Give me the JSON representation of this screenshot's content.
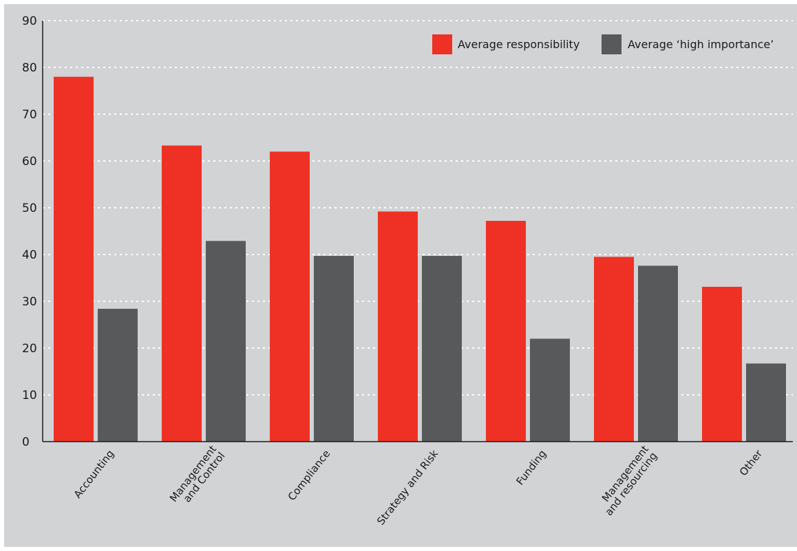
{
  "chart_data": {
    "type": "bar",
    "categories": [
      [
        "Accounting"
      ],
      [
        "Management",
        "and Control"
      ],
      [
        "Compliance"
      ],
      [
        "Strategy and Risk"
      ],
      [
        "Funding"
      ],
      [
        "Management",
        "and resourcing"
      ],
      [
        "Other"
      ]
    ],
    "series": [
      {
        "name": "Average responsibility",
        "color": "#ee3124",
        "values": [
          78,
          63.3,
          62,
          49.2,
          47.2,
          39.5,
          33.1
        ]
      },
      {
        "name": "Average ‘high importance’",
        "color": "#58595b",
        "values": [
          28.4,
          42.9,
          39.7,
          39.7,
          22,
          37.6,
          16.7
        ]
      }
    ],
    "y_ticks": [
      "0",
      "10",
      "20",
      "30",
      "40",
      "50",
      "60",
      "70",
      "80",
      "90"
    ],
    "ylim": [
      0,
      90
    ],
    "grid": true,
    "legend_position": "top-right",
    "background": "#d2d3d5"
  }
}
